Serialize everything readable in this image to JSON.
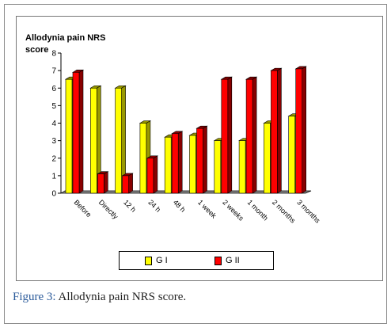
{
  "figure": {
    "caption_label": "Figure 3:",
    "caption_text": " Allodynia pain NRS score."
  },
  "colors": {
    "gi_front": "#ffff00",
    "gi_side": "#999900",
    "gii_front": "#ff0000",
    "gii_side": "#880000",
    "floor": "#8c8c8c"
  },
  "chart_data": {
    "type": "bar",
    "title": "Allodynia pain NRS\nscore",
    "categories": [
      "Before",
      "Directly",
      "12 h",
      "24 h",
      "48 h",
      "1 week",
      "2 weeks",
      "1 month",
      "2 months",
      "3 months"
    ],
    "series": [
      {
        "name": "G I",
        "values": [
          6.5,
          6.0,
          6.0,
          4.0,
          3.2,
          3.3,
          3.0,
          3.0,
          4.0,
          4.4
        ]
      },
      {
        "name": "G II",
        "values": [
          6.9,
          1.1,
          1.0,
          2.0,
          3.4,
          3.7,
          6.5,
          6.5,
          7.0,
          7.1
        ]
      }
    ],
    "yticks": [
      0,
      1,
      2,
      3,
      4,
      5,
      6,
      7,
      8
    ],
    "ylim": [
      0,
      8
    ],
    "legend_position": "bottom",
    "grid": false
  }
}
